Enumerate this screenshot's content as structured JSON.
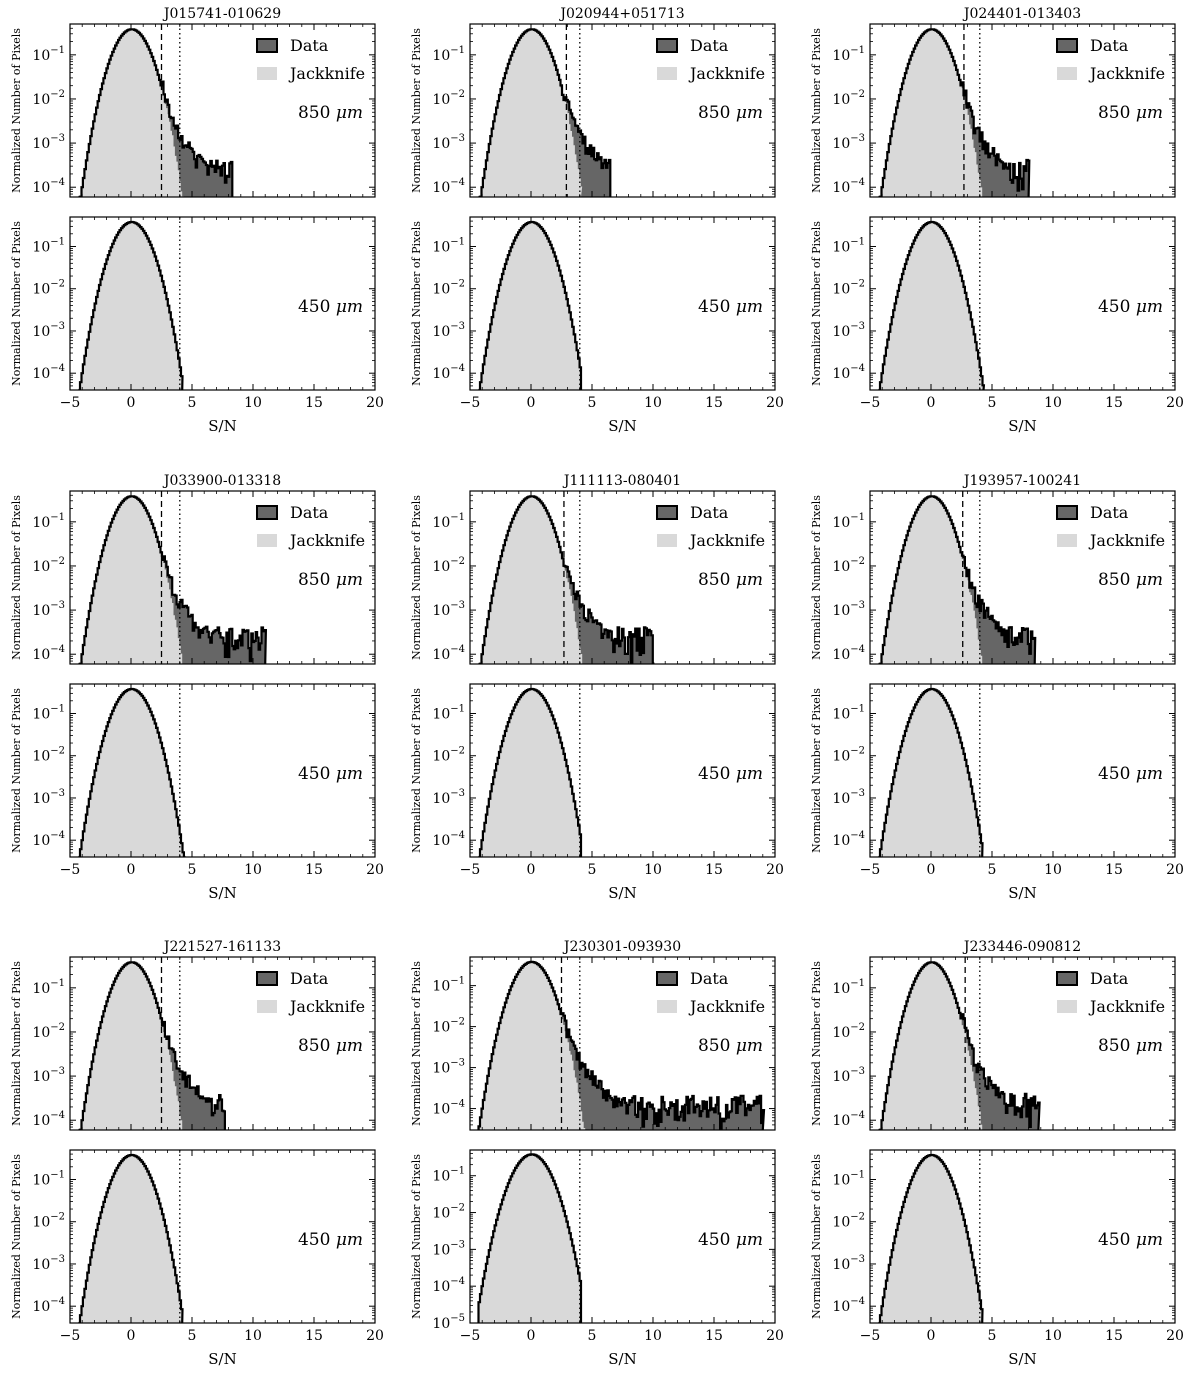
{
  "figure": {
    "shared_xlabel": "S/N",
    "shared_ylabel": "Normalized Number of Pixels",
    "legend": {
      "data_label": "Data",
      "jackknife_label": "Jackknife"
    },
    "band_labels": {
      "850": "850 μm",
      "450": "450 μm"
    },
    "colors": {
      "data_fill": "#666666",
      "jackknife_fill": "#d9d9d9",
      "outline": "#000000"
    }
  },
  "chart_data": [
    {
      "type": "histogram",
      "title": "J015741-010629",
      "band": "850 μm",
      "xlabel": "",
      "ylabel": "Normalized Number of Pixels",
      "xlim": [
        -5,
        20
      ],
      "ylim": [
        6e-05,
        0.5
      ],
      "yscale": "log",
      "legend": [
        "Data",
        "Jackknife"
      ],
      "legend_placement": "top-right",
      "data_tail_end": 8.3,
      "jackknife_tail_end": 4.6,
      "dashed_threshold": 2.5,
      "dotted_threshold": 4.0
    },
    {
      "type": "histogram",
      "title": "J015741-010629",
      "band": "450 μm",
      "xlabel": "S/N",
      "ylabel": "Normalized Number of Pixels",
      "xlim": [
        -5,
        20
      ],
      "ylim": [
        4e-05,
        0.5
      ],
      "yscale": "log",
      "data_tail_end": 4.2,
      "jackknife_tail_end": 4.1,
      "dotted_threshold": 4.0
    },
    {
      "type": "histogram",
      "title": "J020944+051713",
      "band": "850 μm",
      "xlabel": "",
      "ylabel": "Normalized Number of Pixels",
      "xlim": [
        -5,
        20
      ],
      "ylim": [
        6e-05,
        0.5
      ],
      "yscale": "log",
      "legend": [
        "Data",
        "Jackknife"
      ],
      "legend_placement": "top-right",
      "data_tail_end": 6.5,
      "jackknife_tail_end": 4.1,
      "dashed_threshold": 2.9,
      "dotted_threshold": 4.0
    },
    {
      "type": "histogram",
      "title": "J020944+051713",
      "band": "450 μm",
      "xlabel": "S/N",
      "ylabel": "Normalized Number of Pixels",
      "xlim": [
        -5,
        20
      ],
      "ylim": [
        4e-05,
        0.5
      ],
      "yscale": "log",
      "data_tail_end": 4.1,
      "jackknife_tail_end": 4.0,
      "dotted_threshold": 4.0
    },
    {
      "type": "histogram",
      "title": "J024401-013403",
      "band": "850 μm",
      "xlabel": "",
      "ylabel": "Normalized Number of Pixels",
      "xlim": [
        -5,
        20
      ],
      "ylim": [
        6e-05,
        0.5
      ],
      "yscale": "log",
      "legend": [
        "Data",
        "Jackknife"
      ],
      "legend_placement": "top-right",
      "data_tail_end": 8.0,
      "jackknife_tail_end": 4.3,
      "dashed_threshold": 2.7,
      "dotted_threshold": 4.0
    },
    {
      "type": "histogram",
      "title": "J024401-013403",
      "band": "450 μm",
      "xlabel": "S/N",
      "ylabel": "Normalized Number of Pixels",
      "xlim": [
        -5,
        20
      ],
      "ylim": [
        4e-05,
        0.5
      ],
      "yscale": "log",
      "data_tail_end": 4.3,
      "jackknife_tail_end": 4.1,
      "dotted_threshold": 4.0
    },
    {
      "type": "histogram",
      "title": "J033900-013318",
      "band": "850 μm",
      "xlabel": "",
      "ylabel": "Normalized Number of Pixels",
      "xlim": [
        -5,
        20
      ],
      "ylim": [
        6e-05,
        0.5
      ],
      "yscale": "log",
      "legend": [
        "Data",
        "Jackknife"
      ],
      "legend_placement": "top-right",
      "data_tail_end": 11.0,
      "jackknife_tail_end": 4.6,
      "dashed_threshold": 2.5,
      "dotted_threshold": 4.0
    },
    {
      "type": "histogram",
      "title": "J033900-013318",
      "band": "450 μm",
      "xlabel": "S/N",
      "ylabel": "Normalized Number of Pixels",
      "xlim": [
        -5,
        20
      ],
      "ylim": [
        4e-05,
        0.5
      ],
      "yscale": "log",
      "data_tail_end": 4.4,
      "jackknife_tail_end": 4.1,
      "dotted_threshold": 4.0
    },
    {
      "type": "histogram",
      "title": "J111113-080401",
      "band": "850 μm",
      "xlabel": "",
      "ylabel": "Normalized Number of Pixels",
      "xlim": [
        -5,
        20
      ],
      "ylim": [
        6e-05,
        0.5
      ],
      "yscale": "log",
      "legend": [
        "Data",
        "Jackknife"
      ],
      "legend_placement": "top-right",
      "data_tail_end": 10.0,
      "jackknife_tail_end": 4.5,
      "dashed_threshold": 2.7,
      "dotted_threshold": 4.0
    },
    {
      "type": "histogram",
      "title": "J111113-080401",
      "band": "450 μm",
      "xlabel": "S/N",
      "ylabel": "Normalized Number of Pixels",
      "xlim": [
        -5,
        20
      ],
      "ylim": [
        4e-05,
        0.5
      ],
      "yscale": "log",
      "data_tail_end": 4.1,
      "jackknife_tail_end": 4.0,
      "dotted_threshold": 4.0
    },
    {
      "type": "histogram",
      "title": "J193957-100241",
      "band": "850 μm",
      "xlabel": "",
      "ylabel": "Normalized Number of Pixels",
      "xlim": [
        -5,
        20
      ],
      "ylim": [
        6e-05,
        0.5
      ],
      "yscale": "log",
      "legend": [
        "Data",
        "Jackknife"
      ],
      "legend_placement": "top-right",
      "data_tail_end": 8.5,
      "jackknife_tail_end": 4.5,
      "dashed_threshold": 2.6,
      "dotted_threshold": 4.0
    },
    {
      "type": "histogram",
      "title": "J193957-100241",
      "band": "450 μm",
      "xlabel": "S/N",
      "ylabel": "Normalized Number of Pixels",
      "xlim": [
        -5,
        20
      ],
      "ylim": [
        4e-05,
        0.5
      ],
      "yscale": "log",
      "data_tail_end": 4.2,
      "jackknife_tail_end": 4.1,
      "dotted_threshold": 4.0
    },
    {
      "type": "histogram",
      "title": "J221527-161133",
      "band": "850 μm",
      "xlabel": "",
      "ylabel": "Normalized Number of Pixels",
      "xlim": [
        -5,
        20
      ],
      "ylim": [
        6e-05,
        0.5
      ],
      "yscale": "log",
      "legend": [
        "Data",
        "Jackknife"
      ],
      "legend_placement": "top-right",
      "data_tail_end": 7.7,
      "jackknife_tail_end": 4.4,
      "dashed_threshold": 2.5,
      "dotted_threshold": 4.0
    },
    {
      "type": "histogram",
      "title": "J221527-161133",
      "band": "450 μm",
      "xlabel": "S/N",
      "ylabel": "Normalized Number of Pixels",
      "xlim": [
        -5,
        20
      ],
      "ylim": [
        4e-05,
        0.5
      ],
      "yscale": "log",
      "data_tail_end": 4.2,
      "jackknife_tail_end": 4.1,
      "dotted_threshold": 4.0
    },
    {
      "type": "histogram",
      "title": "J230301-093930",
      "band": "850 μm",
      "xlabel": "",
      "ylabel": "Normalized Number of Pixels",
      "xlim": [
        -5,
        20
      ],
      "ylim": [
        3e-05,
        0.5
      ],
      "yscale": "log",
      "legend": [
        "Data",
        "Jackknife"
      ],
      "legend_placement": "top-right",
      "data_tail_end": 19.0,
      "jackknife_tail_end": 4.6,
      "dashed_threshold": 2.5,
      "dotted_threshold": 4.0
    },
    {
      "type": "histogram",
      "title": "J230301-093930",
      "band": "450 μm",
      "xlabel": "S/N",
      "ylabel": "Normalized Number of Pixels",
      "xlim": [
        -5,
        20
      ],
      "ylim": [
        1e-05,
        0.5
      ],
      "yscale": "log",
      "data_tail_end": 4.1,
      "jackknife_tail_end": 4.0,
      "dotted_threshold": 4.0
    },
    {
      "type": "histogram",
      "title": "J233446-090812",
      "band": "850 μm",
      "xlabel": "",
      "ylabel": "Normalized Number of Pixels",
      "xlim": [
        -5,
        20
      ],
      "ylim": [
        6e-05,
        0.5
      ],
      "yscale": "log",
      "legend": [
        "Data",
        "Jackknife"
      ],
      "legend_placement": "top-right",
      "data_tail_end": 8.8,
      "jackknife_tail_end": 4.5,
      "dashed_threshold": 2.8,
      "dotted_threshold": 4.0
    },
    {
      "type": "histogram",
      "title": "J233446-090812",
      "band": "450 μm",
      "xlabel": "S/N",
      "ylabel": "Normalized Number of Pixels",
      "xlim": [
        -5,
        20
      ],
      "ylim": [
        4e-05,
        0.5
      ],
      "yscale": "log",
      "data_tail_end": 4.2,
      "jackknife_tail_end": 4.1,
      "dotted_threshold": 4.0
    }
  ]
}
